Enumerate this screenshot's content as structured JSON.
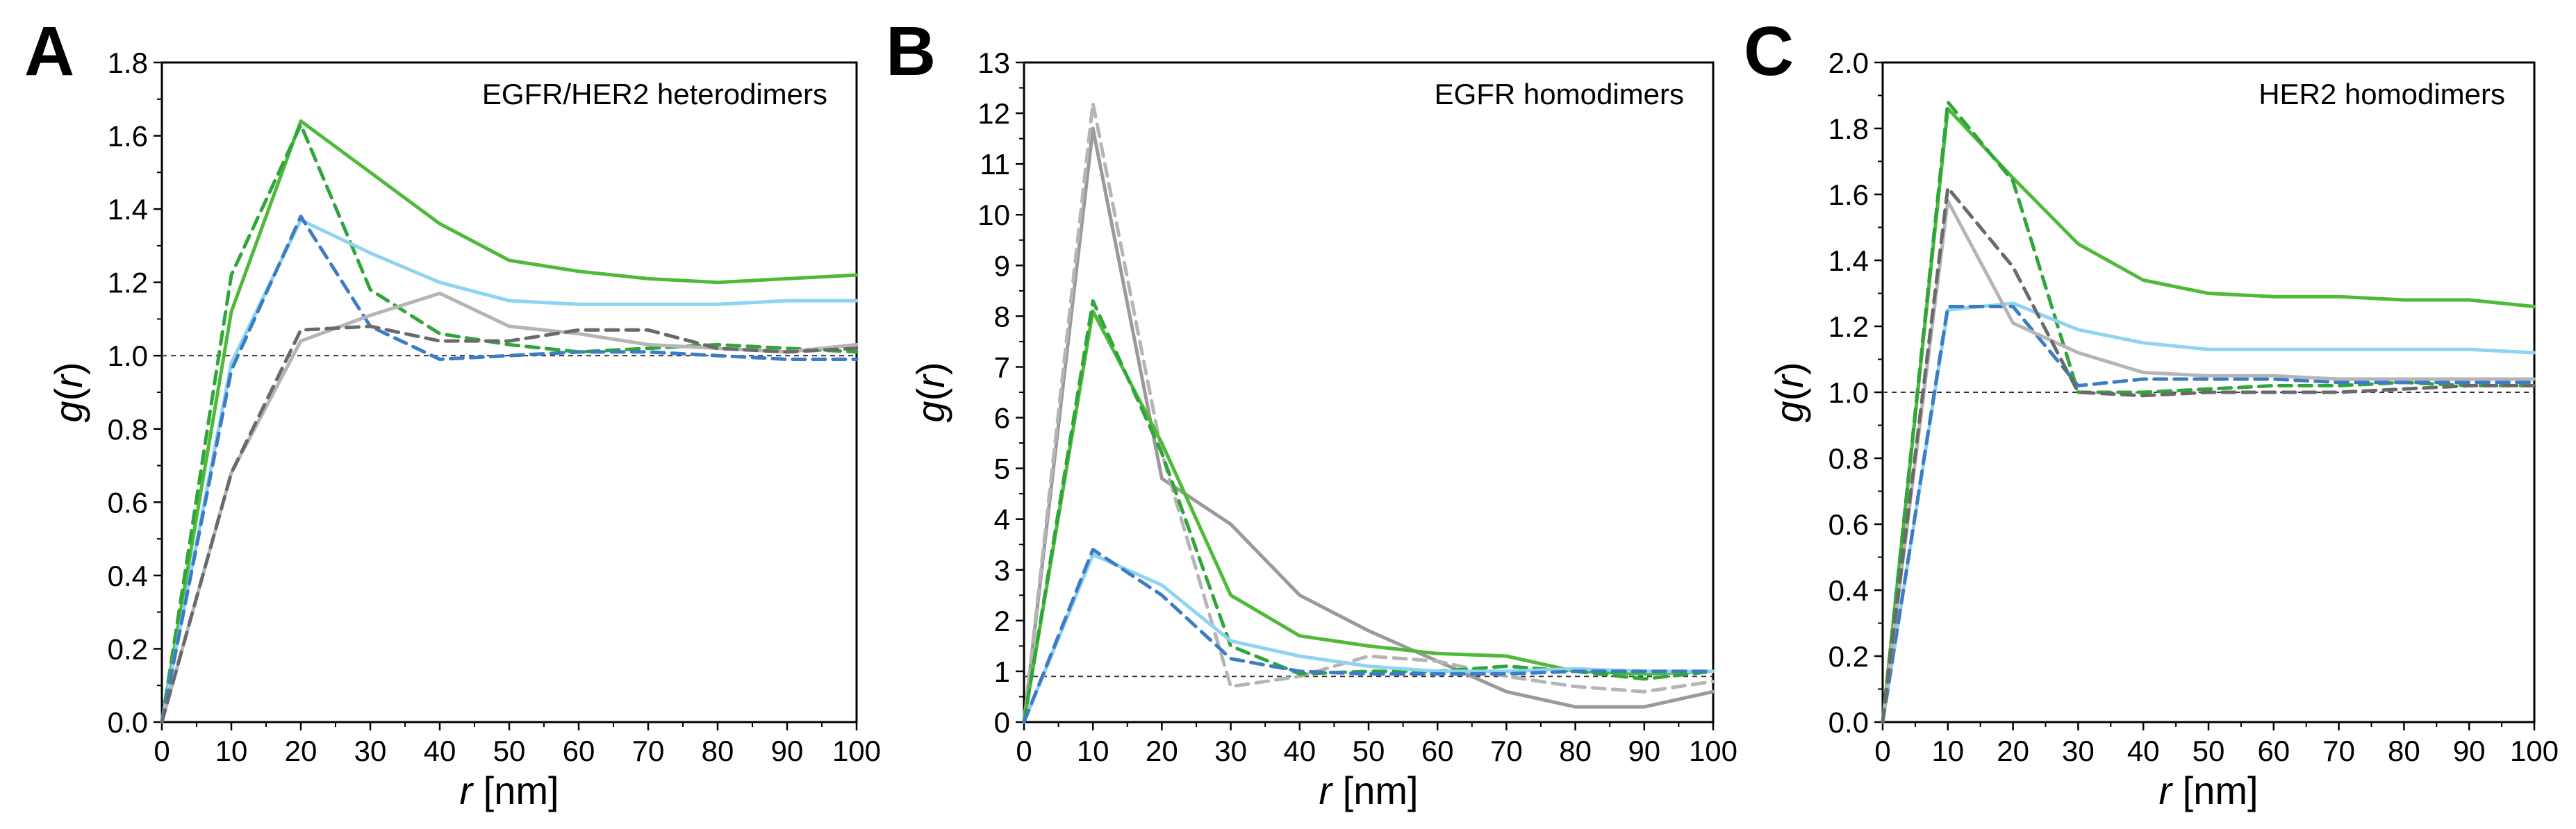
{
  "colors": {
    "green": "#4fba3a",
    "darkgreen": "#2fa53a",
    "lightblue": "#8fd3f0",
    "blue": "#3b7cc4",
    "lightgray": "#b5b5b5",
    "gray": "#9a9a9a",
    "darkgray": "#6a6a6a",
    "reference": "#333333"
  },
  "chart_data": [
    {
      "type": "line",
      "panel": "A",
      "title": "EGFR/HER2 heterodimers",
      "xlabel_italic": "r",
      "xlabel_rest": " [nm]",
      "ylabel_italic": "g",
      "ylabel_paren_open": "(",
      "ylabel_var": "r",
      "ylabel_paren_close": ")",
      "xlim": [
        0,
        100
      ],
      "ylim": [
        0,
        1.8
      ],
      "xticks": [
        0,
        10,
        20,
        30,
        40,
        50,
        60,
        70,
        80,
        90,
        100
      ],
      "yticks": [
        0.0,
        0.2,
        0.4,
        0.6,
        0.8,
        1.0,
        1.2,
        1.4,
        1.6,
        1.8
      ],
      "ytick_labels": [
        "0.0",
        "0.2",
        "0.4",
        "0.6",
        "0.8",
        "1.0",
        "1.2",
        "1.4",
        "1.6",
        "1.8"
      ],
      "reference_y": 1.0,
      "x": [
        0,
        10,
        20,
        30,
        40,
        50,
        60,
        70,
        80,
        90,
        100
      ],
      "series": [
        {
          "name": "green-solid",
          "color": "green",
          "dash": false,
          "values": [
            0.0,
            1.12,
            1.64,
            1.5,
            1.36,
            1.26,
            1.23,
            1.21,
            1.2,
            1.21,
            1.22
          ]
        },
        {
          "name": "green-dashed",
          "color": "darkgreen",
          "dash": true,
          "values": [
            0.0,
            1.22,
            1.63,
            1.18,
            1.06,
            1.03,
            1.01,
            1.02,
            1.03,
            1.02,
            1.01
          ]
        },
        {
          "name": "lightblue-solid",
          "color": "lightblue",
          "dash": false,
          "values": [
            0.0,
            0.98,
            1.37,
            1.28,
            1.2,
            1.15,
            1.14,
            1.14,
            1.14,
            1.15,
            1.15
          ]
        },
        {
          "name": "blue-dashed",
          "color": "blue",
          "dash": true,
          "values": [
            0.0,
            0.96,
            1.38,
            1.08,
            0.99,
            1.0,
            1.01,
            1.01,
            1.0,
            0.99,
            0.99
          ]
        },
        {
          "name": "lightgray-solid",
          "color": "lightgray",
          "dash": false,
          "values": [
            0.0,
            0.68,
            1.04,
            1.11,
            1.17,
            1.08,
            1.06,
            1.03,
            1.02,
            1.01,
            1.03
          ]
        },
        {
          "name": "darkgray-dashed",
          "color": "darkgray",
          "dash": true,
          "values": [
            0.0,
            0.68,
            1.07,
            1.08,
            1.04,
            1.04,
            1.07,
            1.07,
            1.02,
            1.01,
            1.02
          ]
        }
      ]
    },
    {
      "type": "line",
      "panel": "B",
      "title": "EGFR homodimers",
      "xlabel_italic": "r",
      "xlabel_rest": " [nm]",
      "ylabel_italic": "g",
      "ylabel_paren_open": "(",
      "ylabel_var": "r",
      "ylabel_paren_close": ")",
      "xlim": [
        0,
        100
      ],
      "ylim": [
        0,
        13
      ],
      "xticks": [
        0,
        10,
        20,
        30,
        40,
        50,
        60,
        70,
        80,
        90,
        100
      ],
      "yticks": [
        0,
        1,
        2,
        3,
        4,
        5,
        6,
        7,
        8,
        9,
        10,
        11,
        12,
        13
      ],
      "ytick_labels": [
        "0",
        "1",
        "2",
        "3",
        "4",
        "5",
        "6",
        "7",
        "8",
        "9",
        "10",
        "11",
        "12",
        "13"
      ],
      "reference_y": 0.9,
      "x": [
        0,
        10,
        20,
        30,
        40,
        50,
        60,
        70,
        80,
        90,
        100
      ],
      "series": [
        {
          "name": "gray-solid",
          "color": "gray",
          "dash": false,
          "values": [
            0.0,
            11.7,
            4.8,
            3.9,
            2.5,
            1.8,
            1.2,
            0.6,
            0.3,
            0.3,
            0.6
          ]
        },
        {
          "name": "lightgray-dashed",
          "color": "lightgray",
          "dash": true,
          "values": [
            0.0,
            12.2,
            5.3,
            0.7,
            0.9,
            1.3,
            1.2,
            0.9,
            0.7,
            0.6,
            0.8
          ]
        },
        {
          "name": "green-solid",
          "color": "green",
          "dash": false,
          "values": [
            0.0,
            8.1,
            5.5,
            2.5,
            1.7,
            1.5,
            1.35,
            1.3,
            1.0,
            0.95,
            1.0
          ]
        },
        {
          "name": "green-dashed",
          "color": "darkgreen",
          "dash": true,
          "values": [
            0.0,
            8.3,
            5.3,
            1.5,
            0.95,
            1.0,
            1.0,
            1.1,
            1.0,
            0.85,
            1.0
          ]
        },
        {
          "name": "lightblue-solid",
          "color": "lightblue",
          "dash": false,
          "values": [
            0.0,
            3.3,
            2.7,
            1.6,
            1.3,
            1.1,
            1.0,
            1.0,
            1.05,
            1.0,
            1.0
          ]
        },
        {
          "name": "blue-dashed",
          "color": "blue",
          "dash": true,
          "values": [
            0.0,
            3.4,
            2.5,
            1.25,
            1.0,
            0.95,
            0.95,
            0.95,
            1.0,
            1.0,
            1.0
          ]
        }
      ]
    },
    {
      "type": "line",
      "panel": "C",
      "title": "HER2 homodimers",
      "xlabel_italic": "r",
      "xlabel_rest": " [nm]",
      "ylabel_italic": "g",
      "ylabel_paren_open": "(",
      "ylabel_var": "r",
      "ylabel_paren_close": ")",
      "xlim": [
        0,
        100
      ],
      "ylim": [
        0,
        2.0
      ],
      "xticks": [
        0,
        10,
        20,
        30,
        40,
        50,
        60,
        70,
        80,
        90,
        100
      ],
      "yticks": [
        0.0,
        0.2,
        0.4,
        0.6,
        0.8,
        1.0,
        1.2,
        1.4,
        1.6,
        1.8,
        2.0
      ],
      "ytick_labels": [
        "0.0",
        "0.2",
        "0.4",
        "0.6",
        "0.8",
        "1.0",
        "1.2",
        "1.4",
        "1.6",
        "1.8",
        "2.0"
      ],
      "reference_y": 1.0,
      "x": [
        0,
        10,
        20,
        30,
        40,
        50,
        60,
        70,
        80,
        90,
        100
      ],
      "series": [
        {
          "name": "green-solid",
          "color": "green",
          "dash": false,
          "values": [
            0.0,
            1.86,
            1.65,
            1.45,
            1.34,
            1.3,
            1.29,
            1.29,
            1.28,
            1.28,
            1.26
          ]
        },
        {
          "name": "green-dashed",
          "color": "darkgreen",
          "dash": true,
          "values": [
            0.0,
            1.88,
            1.64,
            1.0,
            1.0,
            1.01,
            1.02,
            1.02,
            1.03,
            1.02,
            1.02
          ]
        },
        {
          "name": "lightblue-solid",
          "color": "lightblue",
          "dash": false,
          "values": [
            0.0,
            1.25,
            1.27,
            1.19,
            1.15,
            1.13,
            1.13,
            1.13,
            1.13,
            1.13,
            1.12
          ]
        },
        {
          "name": "blue-dashed",
          "color": "blue",
          "dash": true,
          "values": [
            0.0,
            1.26,
            1.26,
            1.02,
            1.04,
            1.04,
            1.04,
            1.03,
            1.03,
            1.03,
            1.03
          ]
        },
        {
          "name": "lightgray-solid",
          "color": "lightgray",
          "dash": false,
          "values": [
            0.0,
            1.58,
            1.21,
            1.12,
            1.06,
            1.05,
            1.05,
            1.04,
            1.04,
            1.04,
            1.04
          ]
        },
        {
          "name": "darkgray-dashed",
          "color": "darkgray",
          "dash": true,
          "values": [
            0.0,
            1.62,
            1.38,
            1.0,
            0.99,
            1.0,
            1.0,
            1.0,
            1.01,
            1.02,
            1.02
          ]
        }
      ]
    }
  ]
}
